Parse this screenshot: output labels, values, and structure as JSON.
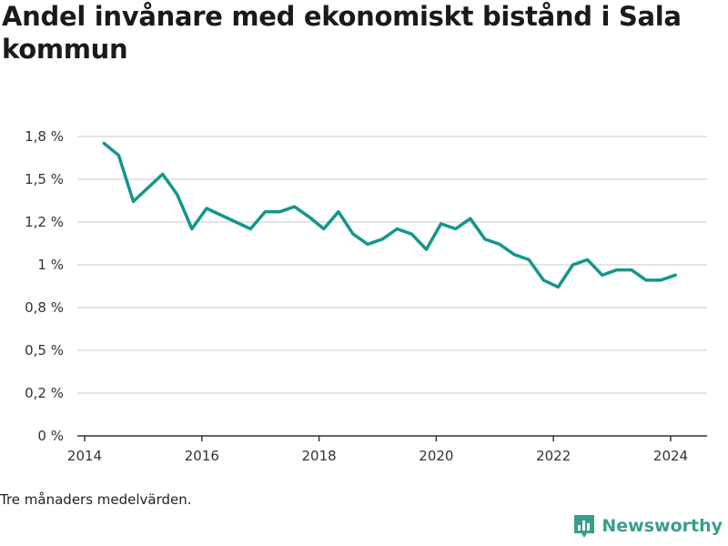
{
  "chart_data": {
    "type": "line",
    "title": "Andel invånare med ekonomiskt bistånd i Sala kommun",
    "xlabel": "",
    "ylabel": "",
    "y_ticks": [
      0,
      0.25,
      0.5,
      0.75,
      1.0,
      1.25,
      1.5,
      1.75
    ],
    "y_tick_labels": [
      "0 %",
      "0,2 %",
      "0,5 %",
      "0,8 %",
      "1 %",
      "1,2 %",
      "1,5 %",
      "1,8 %"
    ],
    "x_ticks": [
      2014,
      2016,
      2018,
      2020,
      2022,
      2024
    ],
    "x_tick_labels": [
      "2014",
      "2016",
      "2018",
      "2020",
      "2022",
      "2024"
    ],
    "xlim": [
      2014,
      2024.55
    ],
    "ylim": [
      0,
      1.75
    ],
    "grid": true,
    "series": [
      {
        "values": [
          [
            2014.33,
            1.71
          ],
          [
            2014.58,
            1.64
          ],
          [
            2014.83,
            1.37
          ],
          [
            2015.08,
            1.45
          ],
          [
            2015.33,
            1.53
          ],
          [
            2015.58,
            1.41
          ],
          [
            2015.83,
            1.21
          ],
          [
            2016.08,
            1.33
          ],
          [
            2016.33,
            1.29
          ],
          [
            2016.58,
            1.25
          ],
          [
            2016.83,
            1.21
          ],
          [
            2017.08,
            1.31
          ],
          [
            2017.33,
            1.31
          ],
          [
            2017.58,
            1.34
          ],
          [
            2017.83,
            1.28
          ],
          [
            2018.08,
            1.21
          ],
          [
            2018.33,
            1.31
          ],
          [
            2018.58,
            1.18
          ],
          [
            2018.83,
            1.12
          ],
          [
            2019.08,
            1.15
          ],
          [
            2019.33,
            1.21
          ],
          [
            2019.58,
            1.18
          ],
          [
            2019.83,
            1.09
          ],
          [
            2020.08,
            1.24
          ],
          [
            2020.33,
            1.21
          ],
          [
            2020.58,
            1.27
          ],
          [
            2020.83,
            1.15
          ],
          [
            2021.08,
            1.12
          ],
          [
            2021.33,
            1.06
          ],
          [
            2021.58,
            1.03
          ],
          [
            2021.83,
            0.91
          ],
          [
            2022.08,
            0.87
          ],
          [
            2022.33,
            1.0
          ],
          [
            2022.58,
            1.03
          ],
          [
            2022.83,
            0.94
          ],
          [
            2023.08,
            0.97
          ],
          [
            2023.33,
            0.97
          ],
          [
            2023.58,
            0.91
          ],
          [
            2023.83,
            0.91
          ],
          [
            2024.08,
            0.94
          ]
        ],
        "color": "#14968b"
      }
    ]
  },
  "footer": {
    "note": "Tre månaders medelvärden.",
    "brand": "Newsworthy"
  },
  "colors": {
    "line": "#14968b",
    "grid": "#dcdcdc",
    "axis": "#333333",
    "brand": "#3a9e8a"
  },
  "icons": {
    "brand": "newsworthy-chart-icon"
  }
}
